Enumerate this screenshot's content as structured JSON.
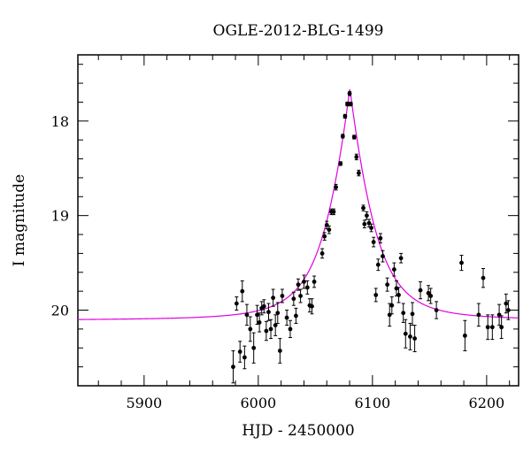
{
  "chart_data": {
    "type": "scatter",
    "title": "OGLE-2012-BLG-1499",
    "xlabel": "HJD - 2450000",
    "ylabel": "I magnitude",
    "xlim": [
      5842,
      6228
    ],
    "ylim": [
      20.8,
      17.3
    ],
    "y_inverted": true,
    "grid": false,
    "x_ticks": [
      5900,
      6000,
      6100,
      6200
    ],
    "y_ticks": [
      18,
      19,
      20
    ],
    "colors": {
      "points": "#000000",
      "model": "#e000e0",
      "axes": "#000000"
    },
    "series": [
      {
        "kind": "observations",
        "points": [
          [
            5978,
            20.6,
            0.17
          ],
          [
            5981,
            19.93,
            0.07
          ],
          [
            5984,
            20.44,
            0.11
          ],
          [
            5986,
            19.8,
            0.11
          ],
          [
            5988,
            20.5,
            0.12
          ],
          [
            5990,
            20.05,
            0.11
          ],
          [
            5993,
            20.2,
            0.13
          ],
          [
            5996,
            20.4,
            0.16
          ],
          [
            5999,
            20.05,
            0.1
          ],
          [
            6001,
            20.13,
            0.1
          ],
          [
            6003,
            19.98,
            0.07
          ],
          [
            6005,
            19.96,
            0.07
          ],
          [
            6007,
            20.22,
            0.1
          ],
          [
            6009,
            20.02,
            0.09
          ],
          [
            6011,
            20.2,
            0.1
          ],
          [
            6013,
            19.87,
            0.09
          ],
          [
            6015,
            20.16,
            0.11
          ],
          [
            6017,
            20.03,
            0.11
          ],
          [
            6019,
            20.43,
            0.13
          ],
          [
            6021,
            19.85,
            0.07
          ],
          [
            6025,
            20.08,
            0.08
          ],
          [
            6028,
            20.2,
            0.09
          ],
          [
            6031,
            19.88,
            0.07
          ],
          [
            6033,
            20.06,
            0.08
          ],
          [
            6035,
            19.73,
            0.06
          ],
          [
            6037,
            19.85,
            0.07
          ],
          [
            6040,
            19.7,
            0.07
          ],
          [
            6043,
            19.76,
            0.07
          ],
          [
            6045,
            19.95,
            0.07
          ],
          [
            6047,
            19.96,
            0.08
          ],
          [
            6049,
            19.7,
            0.06
          ],
          [
            6056,
            19.4,
            0.05
          ],
          [
            6058,
            19.22,
            0.04
          ],
          [
            6060,
            19.1,
            0.04
          ],
          [
            6062,
            19.15,
            0.04
          ],
          [
            6064,
            18.96,
            0.03
          ],
          [
            6066,
            18.96,
            0.03
          ],
          [
            6068,
            18.7,
            0.03
          ],
          [
            6072,
            18.45,
            0.02
          ],
          [
            6074,
            18.16,
            0.02
          ],
          [
            6076,
            17.95,
            0.02
          ],
          [
            6078,
            17.82,
            0.02
          ],
          [
            6080,
            17.71,
            0.02
          ],
          [
            6081,
            17.82,
            0.02
          ],
          [
            6084,
            18.17,
            0.02
          ],
          [
            6086,
            18.38,
            0.03
          ],
          [
            6088,
            18.55,
            0.03
          ],
          [
            6092,
            18.92,
            0.03
          ],
          [
            6093,
            19.09,
            0.04
          ],
          [
            6095,
            19.0,
            0.04
          ],
          [
            6097,
            19.08,
            0.04
          ],
          [
            6099,
            19.13,
            0.04
          ],
          [
            6101,
            19.28,
            0.05
          ],
          [
            6103,
            19.84,
            0.07
          ],
          [
            6105,
            19.52,
            0.06
          ],
          [
            6107,
            19.24,
            0.05
          ],
          [
            6109,
            19.43,
            0.06
          ],
          [
            6113,
            19.73,
            0.07
          ],
          [
            6115,
            20.05,
            0.12
          ],
          [
            6117,
            19.95,
            0.09
          ],
          [
            6119,
            19.57,
            0.07
          ],
          [
            6121,
            19.77,
            0.08
          ],
          [
            6123,
            19.84,
            0.08
          ],
          [
            6125,
            19.45,
            0.05
          ],
          [
            6127,
            20.03,
            0.1
          ],
          [
            6129,
            20.25,
            0.15
          ],
          [
            6133,
            20.28,
            0.14
          ],
          [
            6135,
            20.04,
            0.12
          ],
          [
            6137,
            20.3,
            0.14
          ],
          [
            6142,
            19.79,
            0.09
          ],
          [
            6149,
            19.82,
            0.08
          ],
          [
            6151,
            19.85,
            0.08
          ],
          [
            6156,
            20.0,
            0.09
          ],
          [
            6178,
            19.5,
            0.08
          ],
          [
            6181,
            20.27,
            0.16
          ],
          [
            6193,
            20.05,
            0.12
          ],
          [
            6197,
            19.66,
            0.1
          ],
          [
            6201,
            20.18,
            0.13
          ],
          [
            6205,
            20.18,
            0.13
          ],
          [
            6211,
            20.05,
            0.11
          ],
          [
            6213,
            20.18,
            0.12
          ],
          [
            6217,
            19.93,
            0.1
          ],
          [
            6219,
            20.0,
            0.1
          ]
        ]
      },
      {
        "kind": "model",
        "t0": 6080.2,
        "baseline": 20.11,
        "peak": 17.65,
        "tau": 18
      }
    ]
  }
}
